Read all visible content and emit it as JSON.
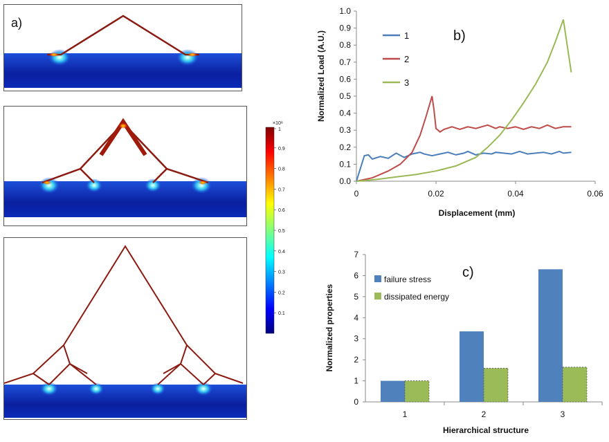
{
  "panel_labels": {
    "a": "a)",
    "b": "b)",
    "c": "c)"
  },
  "colorbar": {
    "exponent_label": "×10⁸",
    "ticks": [
      "1",
      "0.9",
      "0.8",
      "0.7",
      "0.6",
      "0.5",
      "0.4",
      "0.3",
      "0.2",
      "0.1"
    ]
  },
  "colors": {
    "series1": "#4a7ebb",
    "series2": "#be4b48",
    "series3": "#98b954",
    "bar1": "#4f81bd",
    "bar2": "#9bbb59",
    "structure": "#8b1a10"
  },
  "chart_data": [
    {
      "type": "line",
      "xlabel": "Displacement (mm)",
      "ylabel": "Normalized Load (A.U.)",
      "xlim": [
        0,
        0.06
      ],
      "ylim": [
        0,
        1.0
      ],
      "xticks": [
        "0",
        "0.02",
        "0.04",
        "0.06"
      ],
      "yticks": [
        "0.0",
        "0.1",
        "0.2",
        "0.3",
        "0.4",
        "0.5",
        "0.6",
        "0.7",
        "0.8",
        "0.9",
        "1.0"
      ],
      "legend_position": "top-left",
      "series": [
        {
          "name": "1",
          "x": [
            0,
            0.002,
            0.003,
            0.004,
            0.006,
            0.008,
            0.01,
            0.012,
            0.014,
            0.016,
            0.017,
            0.019,
            0.021,
            0.023,
            0.025,
            0.027,
            0.028,
            0.03,
            0.032,
            0.034,
            0.035,
            0.037,
            0.039,
            0.041,
            0.043,
            0.045,
            0.047,
            0.049,
            0.051,
            0.052,
            0.054
          ],
          "y": [
            0,
            0.15,
            0.155,
            0.13,
            0.145,
            0.135,
            0.165,
            0.14,
            0.16,
            0.17,
            0.16,
            0.15,
            0.16,
            0.17,
            0.155,
            0.165,
            0.175,
            0.155,
            0.165,
            0.16,
            0.17,
            0.165,
            0.16,
            0.175,
            0.16,
            0.165,
            0.17,
            0.16,
            0.175,
            0.165,
            0.17
          ]
        },
        {
          "name": "2",
          "x": [
            0,
            0.004,
            0.008,
            0.011,
            0.014,
            0.016,
            0.0175,
            0.019,
            0.0195,
            0.02,
            0.021,
            0.022,
            0.024,
            0.026,
            0.028,
            0.03,
            0.033,
            0.035,
            0.036,
            0.038,
            0.04,
            0.042,
            0.044,
            0.046,
            0.048,
            0.05,
            0.052,
            0.054
          ],
          "y": [
            0,
            0.02,
            0.06,
            0.1,
            0.17,
            0.27,
            0.38,
            0.5,
            0.42,
            0.31,
            0.29,
            0.305,
            0.32,
            0.305,
            0.32,
            0.31,
            0.33,
            0.31,
            0.32,
            0.31,
            0.32,
            0.305,
            0.32,
            0.31,
            0.33,
            0.31,
            0.32,
            0.32
          ]
        },
        {
          "name": "3",
          "x": [
            0,
            0.005,
            0.01,
            0.015,
            0.02,
            0.025,
            0.03,
            0.033,
            0.036,
            0.039,
            0.042,
            0.045,
            0.048,
            0.05,
            0.052,
            0.054
          ],
          "y": [
            0,
            0.01,
            0.025,
            0.04,
            0.06,
            0.09,
            0.14,
            0.2,
            0.27,
            0.36,
            0.46,
            0.57,
            0.7,
            0.82,
            0.95,
            0.64
          ]
        }
      ]
    },
    {
      "type": "bar",
      "categories": [
        "1",
        "2",
        "3"
      ],
      "xlabel": "Hierarchical structure",
      "ylabel": "Normalized properties",
      "ylim": [
        0,
        7
      ],
      "yticks": [
        "0",
        "1",
        "2",
        "3",
        "4",
        "5",
        "6",
        "7"
      ],
      "legend_position": "top-left",
      "series": [
        {
          "name": "failure stress",
          "values": [
            1.0,
            3.35,
            6.3
          ]
        },
        {
          "name": "dissipated energy",
          "values": [
            1.0,
            1.6,
            1.65
          ]
        }
      ]
    }
  ]
}
